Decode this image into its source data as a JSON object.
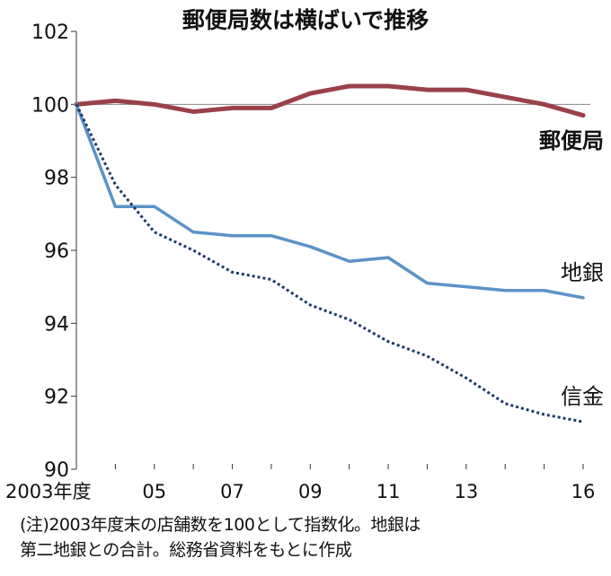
{
  "chart_data": {
    "type": "line",
    "title": "郵便局数は横ばいで推移",
    "x": [
      2003,
      2004,
      2005,
      2006,
      2007,
      2008,
      2009,
      2010,
      2011,
      2012,
      2013,
      2014,
      2015,
      2016
    ],
    "x_tick_labels": [
      {
        "x": 2003,
        "label": "2003年度"
      },
      {
        "x": 2005,
        "label": "05"
      },
      {
        "x": 2007,
        "label": "07"
      },
      {
        "x": 2009,
        "label": "09"
      },
      {
        "x": 2011,
        "label": "11"
      },
      {
        "x": 2013,
        "label": "13"
      },
      {
        "x": 2016,
        "label": "16"
      }
    ],
    "y_ticks": [
      90,
      92,
      94,
      96,
      98,
      100,
      102
    ],
    "ylim": [
      90,
      102
    ],
    "reference_line": 100,
    "series": [
      {
        "name": "郵便局",
        "color": "#9a4148",
        "style": "solid-thick",
        "values": [
          100,
          100.1,
          100,
          99.8,
          99.9,
          99.9,
          100.3,
          100.5,
          100.5,
          100.4,
          100.4,
          100.2,
          100.0,
          99.7
        ]
      },
      {
        "name": "地銀",
        "color": "#5b93c7",
        "style": "solid",
        "values": [
          100,
          97.2,
          97.2,
          96.5,
          96.4,
          96.4,
          96.1,
          95.7,
          95.8,
          95.1,
          95.0,
          94.9,
          94.9,
          94.7
        ]
      },
      {
        "name": "信金",
        "color": "#1f3a66",
        "style": "dotted",
        "values": [
          100,
          97.8,
          96.5,
          96.0,
          95.4,
          95.2,
          94.5,
          94.1,
          93.5,
          93.1,
          92.5,
          91.8,
          91.5,
          91.3
        ]
      }
    ],
    "notes": [
      "(注)2003年度末の店舗数を100として指数化。地銀は",
      "第二地銀との合計。総務省資料をもとに作成"
    ]
  }
}
